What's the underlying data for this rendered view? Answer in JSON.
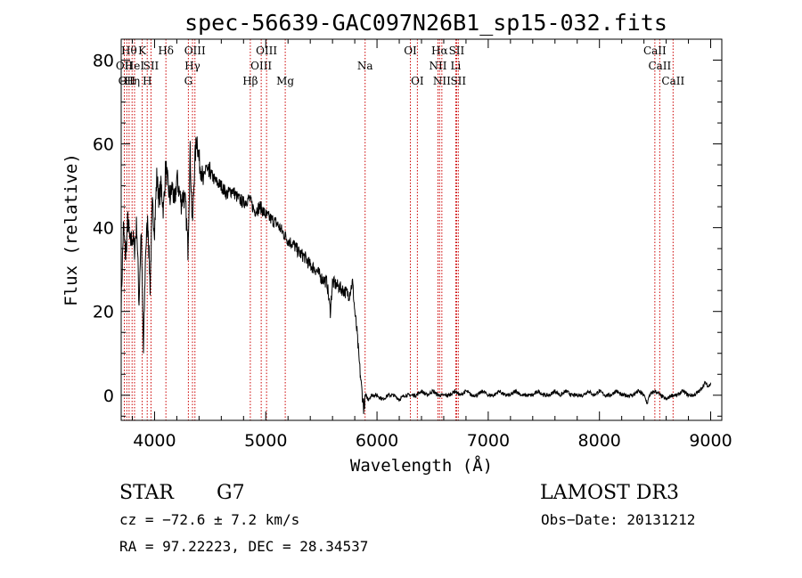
{
  "chart_data": {
    "type": "line",
    "title": "spec-56639-GAC097N26B1_sp15-032.fits",
    "xlabel": "Wavelength (Å)",
    "ylabel": "Flux (relative)",
    "xlim": [
      3700,
      9100
    ],
    "ylim": [
      -6,
      85
    ],
    "xticks": [
      {
        "value": 4000,
        "label": "4000"
      },
      {
        "value": 5000,
        "label": "5000"
      },
      {
        "value": 6000,
        "label": "6000"
      },
      {
        "value": 7000,
        "label": "7000"
      },
      {
        "value": 8000,
        "label": "8000"
      },
      {
        "value": 9000,
        "label": "9000"
      }
    ],
    "yticks": [
      {
        "value": 0,
        "label": "0"
      },
      {
        "value": 20,
        "label": "20"
      },
      {
        "value": 40,
        "label": "40"
      },
      {
        "value": 60,
        "label": "60"
      },
      {
        "value": 80,
        "label": "80"
      }
    ],
    "spectrum": {
      "name": "flux",
      "x": [
        3700,
        3720,
        3740,
        3760,
        3780,
        3800,
        3820,
        3840,
        3860,
        3880,
        3900,
        3920,
        3940,
        3960,
        3980,
        4000,
        4020,
        4040,
        4060,
        4080,
        4100,
        4120,
        4140,
        4160,
        4180,
        4200,
        4220,
        4240,
        4260,
        4280,
        4300,
        4320,
        4340,
        4360,
        4380,
        4400,
        4420,
        4440,
        4460,
        4480,
        4500,
        4550,
        4600,
        4650,
        4700,
        4750,
        4800,
        4850,
        4900,
        4950,
        5000,
        5050,
        5100,
        5150,
        5200,
        5250,
        5300,
        5350,
        5400,
        5450,
        5500,
        5550,
        5580,
        5600,
        5650,
        5700,
        5750,
        5780,
        5800,
        5820,
        5840,
        5860,
        5880,
        5900,
        5920,
        5950,
        6000,
        6050,
        6100,
        6150,
        6200,
        6250,
        6300,
        6350,
        6400,
        6450,
        6500,
        6550,
        6600,
        6650,
        6700,
        6750,
        6800,
        6850,
        6900,
        6950,
        7000,
        7050,
        7100,
        7150,
        7200,
        7250,
        7300,
        7350,
        7400,
        7450,
        7500,
        7550,
        7600,
        7650,
        7700,
        7750,
        7800,
        7850,
        7900,
        7950,
        8000,
        8050,
        8100,
        8150,
        8200,
        8250,
        8300,
        8350,
        8400,
        8430,
        8450,
        8500,
        8550,
        8600,
        8650,
        8700,
        8750,
        8800,
        8850,
        8900,
        8950,
        8980,
        9000
      ],
      "y": [
        22,
        40,
        33,
        42,
        36,
        38,
        35,
        41,
        22,
        40,
        10,
        35,
        42,
        26,
        45,
        40,
        52,
        47,
        50,
        44,
        55,
        50,
        47,
        50,
        45,
        52,
        49,
        46,
        48,
        45,
        35,
        58,
        40,
        55,
        62,
        56,
        54,
        50,
        55,
        52,
        53,
        51,
        50,
        48,
        49,
        47,
        46,
        47,
        44,
        45,
        43,
        42,
        41,
        39,
        37,
        36,
        34,
        33,
        31,
        30,
        28,
        27,
        20,
        27,
        26,
        25,
        24,
        27,
        20,
        15,
        8,
        2,
        -3,
        0,
        -1,
        0,
        0,
        -1,
        0,
        0,
        -1,
        0,
        0,
        0,
        1,
        0,
        1,
        0,
        0,
        0,
        1,
        0,
        1,
        0,
        0,
        1,
        0,
        0,
        1,
        0,
        0,
        1,
        0,
        0,
        0,
        1,
        0,
        0,
        1,
        0,
        1,
        0,
        0,
        0,
        1,
        0,
        1,
        0,
        0,
        1,
        0,
        0,
        0,
        1,
        0,
        -2,
        0,
        1,
        0,
        -1,
        0,
        0,
        1,
        0,
        0,
        1,
        3,
        2,
        3
      ]
    },
    "spectral_lines": [
      {
        "wavelength": 3728,
        "label": "OII",
        "row": 2
      },
      {
        "wavelength": 3750,
        "label": "OII",
        "row": 3
      },
      {
        "wavelength": 3771,
        "label": "Hθ",
        "row": 1
      },
      {
        "wavelength": 3798,
        "label": "Hη",
        "row": 3
      },
      {
        "wavelength": 3820,
        "label": "HeI",
        "row": 2
      },
      {
        "wavelength": 3889,
        "label": "K",
        "row": 1
      },
      {
        "wavelength": 3934,
        "label": "H",
        "row": 3
      },
      {
        "wavelength": 3968,
        "label": "SII",
        "row": 2
      },
      {
        "wavelength": 4102,
        "label": "Hδ",
        "row": 1
      },
      {
        "wavelength": 4304,
        "label": "G",
        "row": 3
      },
      {
        "wavelength": 4341,
        "label": "Hγ",
        "row": 2
      },
      {
        "wavelength": 4363,
        "label": "OIII",
        "row": 1
      },
      {
        "wavelength": 4861,
        "label": "Hβ",
        "row": 3
      },
      {
        "wavelength": 4959,
        "label": "OIII",
        "row": 2
      },
      {
        "wavelength": 5007,
        "label": "OIII",
        "row": 1
      },
      {
        "wavelength": 5175,
        "label": "Mg",
        "row": 3
      },
      {
        "wavelength": 5893,
        "label": "Na",
        "row": 2
      },
      {
        "wavelength": 6300,
        "label": "OI",
        "row": 1
      },
      {
        "wavelength": 6363,
        "label": "OI",
        "row": 3
      },
      {
        "wavelength": 6548,
        "label": "NII",
        "row": 2
      },
      {
        "wavelength": 6563,
        "label": "Hα",
        "row": 1
      },
      {
        "wavelength": 6583,
        "label": "NII",
        "row": 3
      },
      {
        "wavelength": 6708,
        "label": "Li",
        "row": 2
      },
      {
        "wavelength": 6716,
        "label": "SII",
        "row": 1
      },
      {
        "wavelength": 6731,
        "label": "SII",
        "row": 3
      },
      {
        "wavelength": 8498,
        "label": "CaII",
        "row": 1
      },
      {
        "wavelength": 8542,
        "label": "CaII",
        "row": 2
      },
      {
        "wavelength": 8662,
        "label": "CaII",
        "row": 3
      }
    ],
    "line_color": "#cc0000",
    "spectrum_color": "#000000"
  },
  "info": {
    "class_label": "STAR",
    "subclass": "G7",
    "survey": "LAMOST DR3",
    "cz": "cz = −72.6 ± 7.2 km/s",
    "obs_date": "Obs−Date: 20131212",
    "coords": "RA =  97.22223, DEC =  28.34537"
  }
}
